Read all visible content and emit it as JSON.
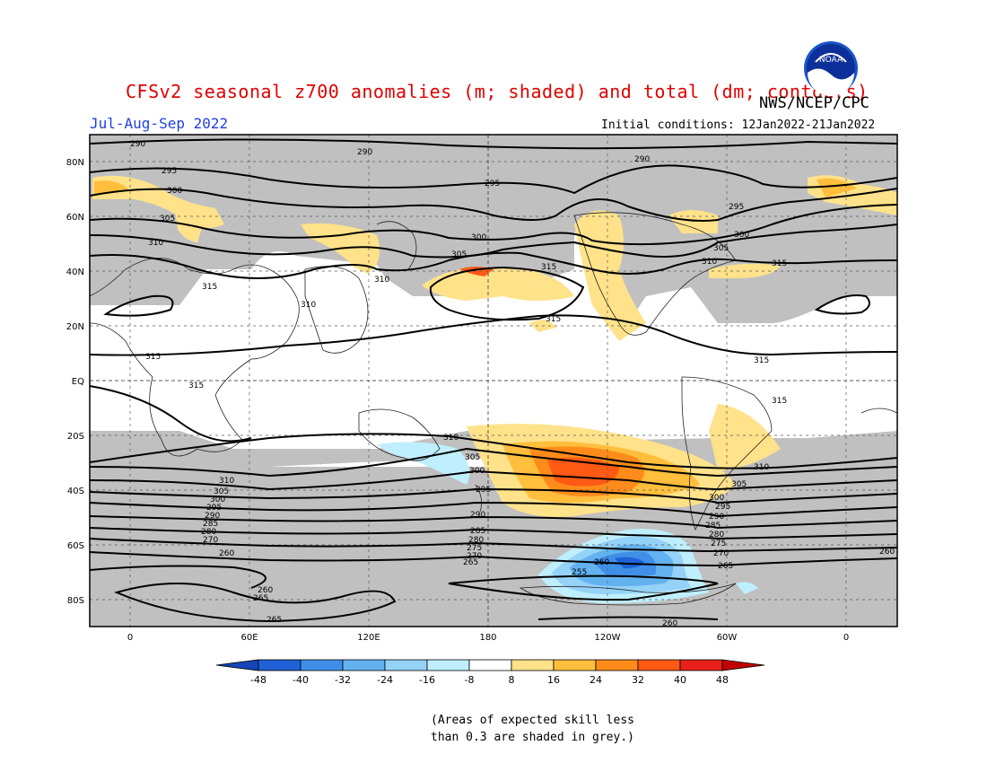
{
  "header": {
    "title": "CFSv2 seasonal z700 anomalies (m; shaded) and total (dm; contours)",
    "org": "NWS/NCEP/CPC",
    "season": "Jul-Aug-Sep 2022",
    "initial_conditions": "Initial conditions: 12Jan2022-21Jan2022",
    "logo_text": "NOAA"
  },
  "map": {
    "lat_labels": [
      "80N",
      "60N",
      "40N",
      "20N",
      "EQ",
      "20S",
      "40S",
      "60S",
      "80S"
    ],
    "lon_labels": [
      "0",
      "60E",
      "120E",
      "180",
      "120W",
      "60W",
      "0"
    ],
    "contour_labels": [
      "290",
      "295",
      "300",
      "305",
      "310",
      "315",
      "310",
      "305",
      "300",
      "295",
      "290",
      "285",
      "280",
      "275",
      "270",
      "265",
      "260",
      "255"
    ],
    "colors": {
      "skill_grey": "#c0c0c0",
      "positive": [
        "#ffe28a",
        "#ffbe3c",
        "#ff8c1a",
        "#ff5a14",
        "#e8201a",
        "#c00000"
      ],
      "negative": [
        "#bfefff",
        "#95d2f8",
        "#63b2f0",
        "#3f8fe8",
        "#2062d6",
        "#1446b8"
      ]
    }
  },
  "colorbar": {
    "ticks": [
      "-48",
      "-40",
      "-32",
      "-24",
      "-16",
      "-8",
      "8",
      "16",
      "24",
      "32",
      "40",
      "48"
    ],
    "colors": [
      "#1446b8",
      "#2062d6",
      "#3f8fe8",
      "#63b2f0",
      "#95d2f8",
      "#bfefff",
      "#ffffff",
      "#ffe28a",
      "#ffbe3c",
      "#ff8c1a",
      "#ff5a14",
      "#e8201a",
      "#c00000"
    ]
  },
  "note": {
    "line1": "(Areas of expected skill less",
    "line2": "than 0.3 are shaded in grey.)"
  }
}
